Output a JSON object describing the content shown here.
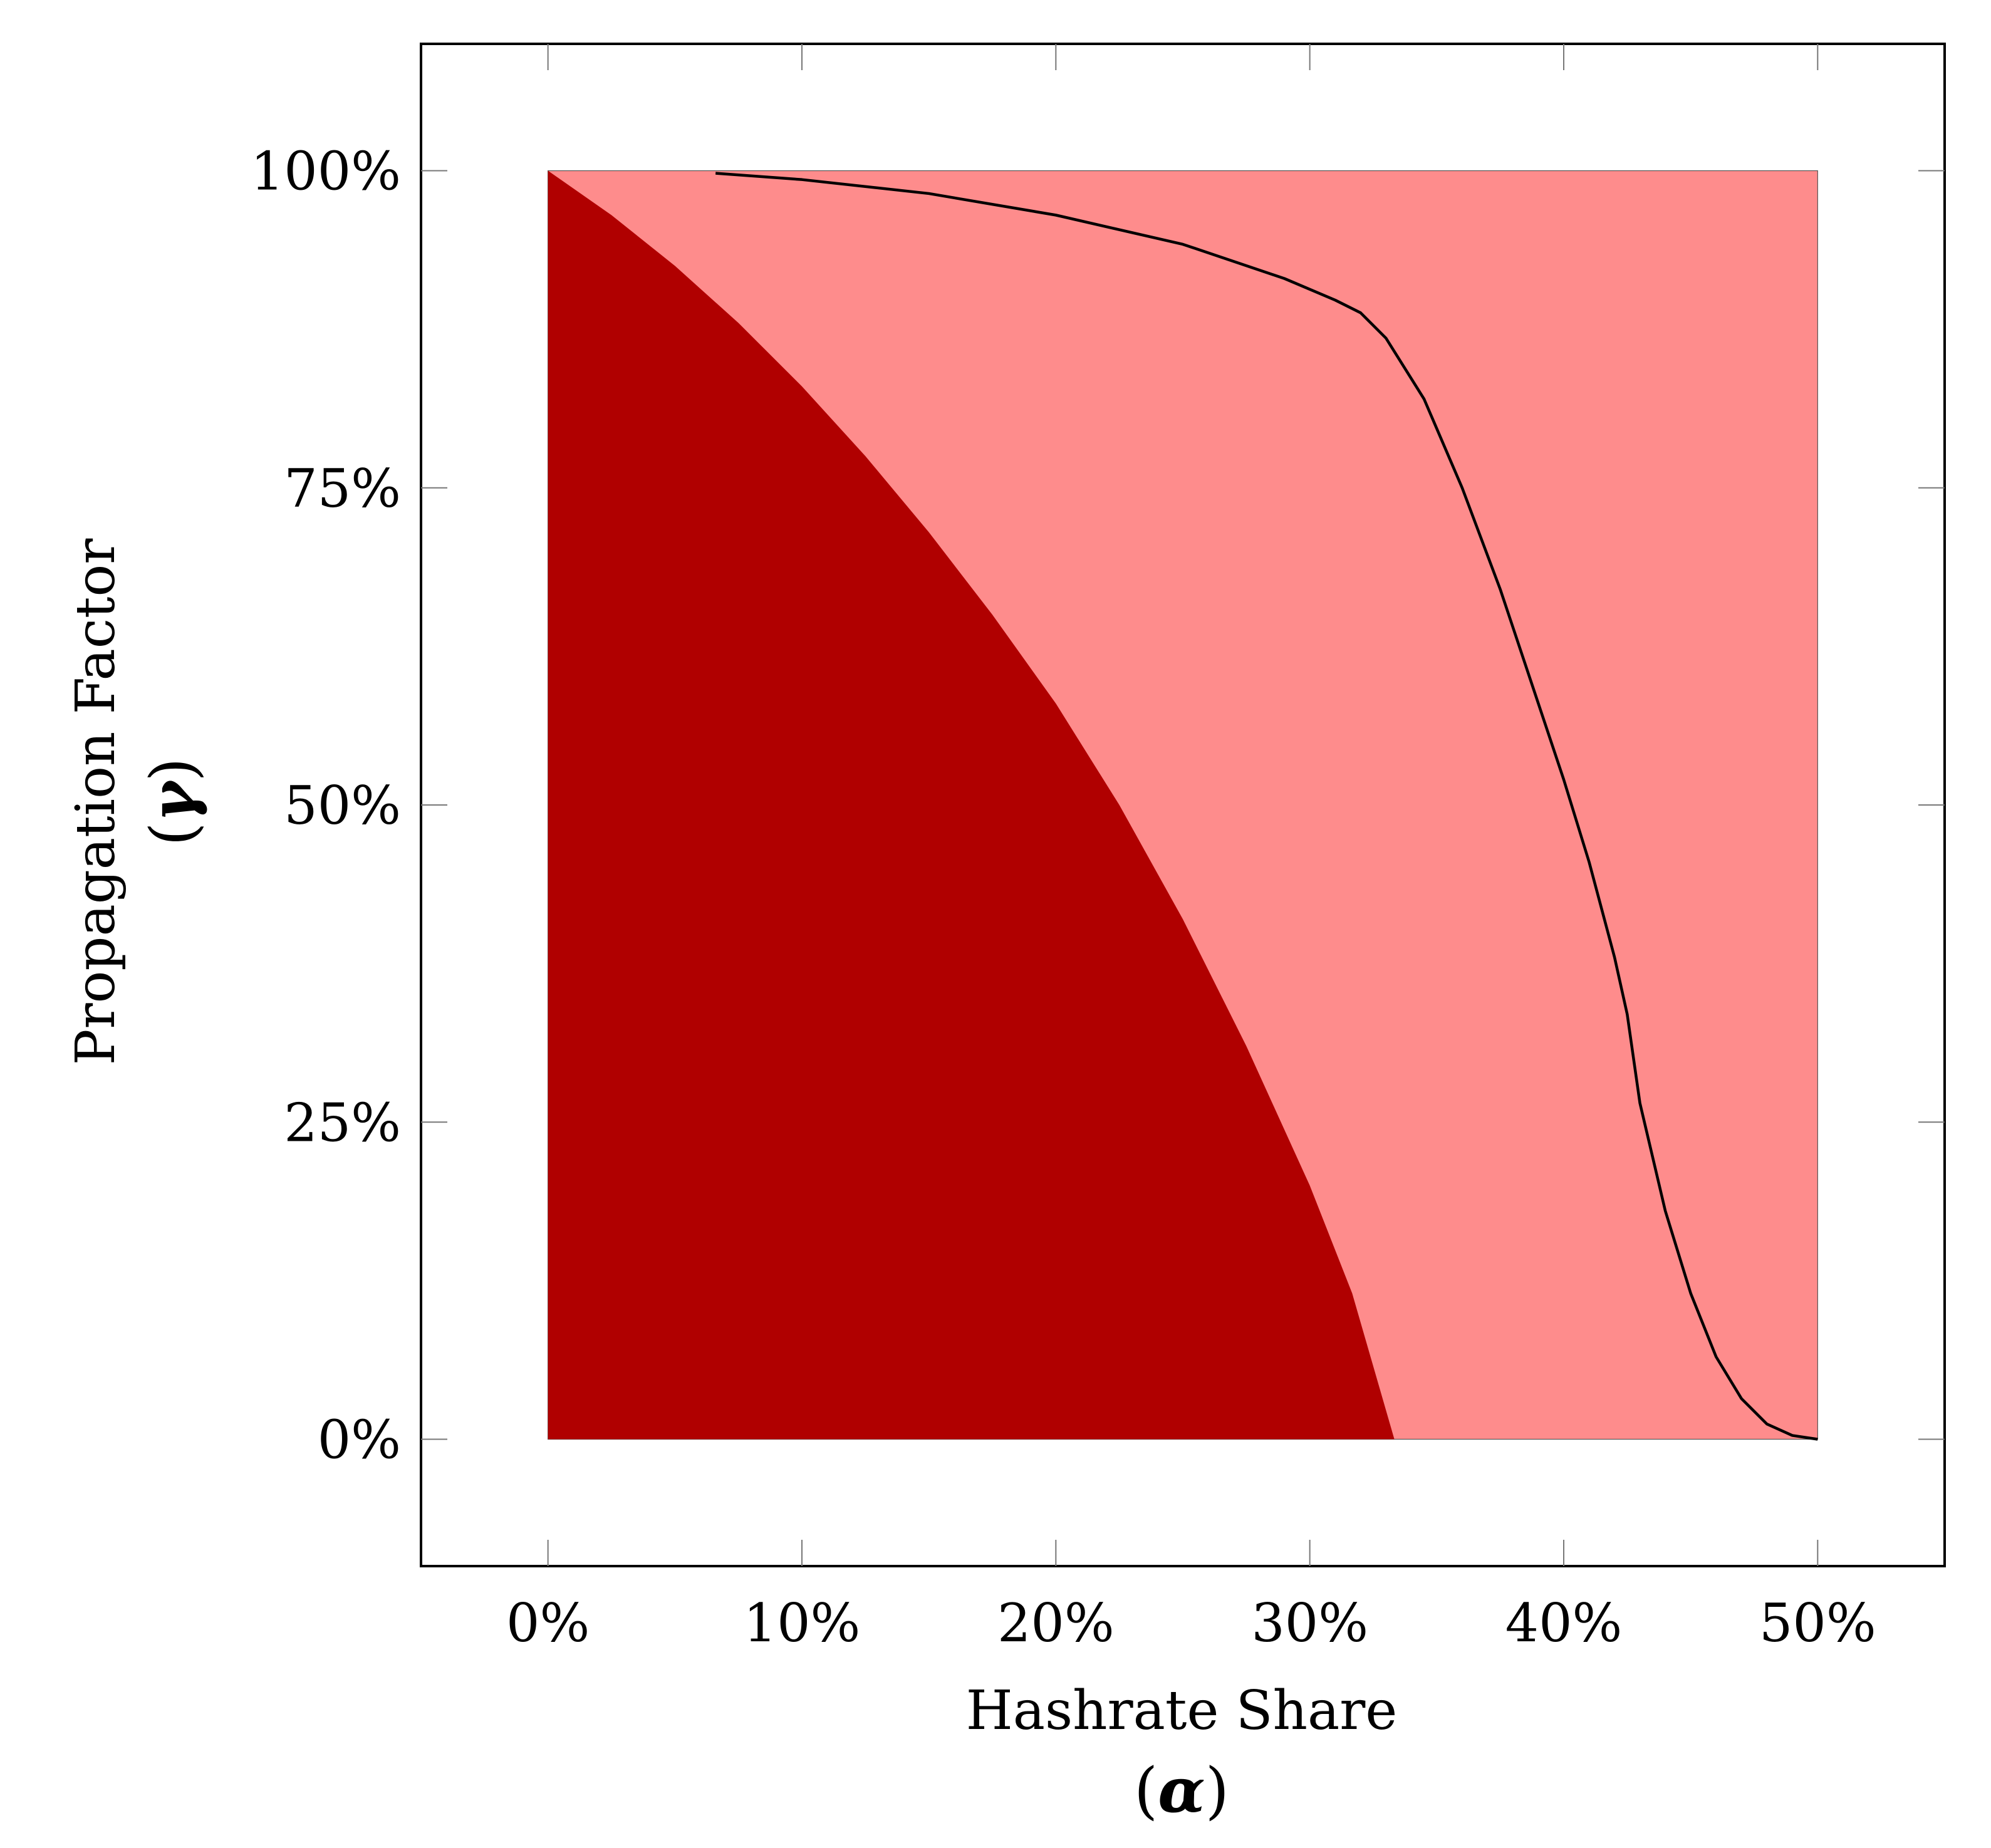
{
  "chart_data": {
    "type": "area",
    "xlabel": "Hashrate Share",
    "xlabel_symbol": "α",
    "ylabel": "Propagation Factor",
    "ylabel_symbol": "γ",
    "xlim": [
      -0.05,
      0.55
    ],
    "ylim": [
      -0.1,
      1.1
    ],
    "x_ticks": [
      {
        "value": 0.0,
        "label": "0%"
      },
      {
        "value": 0.1,
        "label": "10%"
      },
      {
        "value": 0.2,
        "label": "20%"
      },
      {
        "value": 0.3,
        "label": "30%"
      },
      {
        "value": 0.4,
        "label": "40%"
      },
      {
        "value": 0.5,
        "label": "50%"
      }
    ],
    "y_ticks": [
      {
        "value": 0.0,
        "label": "0%"
      },
      {
        "value": 0.25,
        "label": "25%"
      },
      {
        "value": 0.5,
        "label": "50%"
      },
      {
        "value": 0.75,
        "label": "75%"
      },
      {
        "value": 1.0,
        "label": "100%"
      }
    ],
    "grid": false,
    "legend": "none",
    "colors": {
      "dark_region": "#b00000",
      "light_region": "#fe8c8c",
      "curve": "#000000",
      "frame": "#000000"
    },
    "light_region_bounds": {
      "x": [
        0.0,
        0.5
      ],
      "y": [
        0.0,
        1.0
      ]
    },
    "dark_region_boundary": [
      [
        0.0,
        1.0
      ],
      [
        0.025,
        0.965
      ],
      [
        0.05,
        0.925
      ],
      [
        0.075,
        0.88
      ],
      [
        0.1,
        0.83
      ],
      [
        0.125,
        0.775
      ],
      [
        0.15,
        0.715
      ],
      [
        0.175,
        0.65
      ],
      [
        0.2,
        0.58
      ],
      [
        0.225,
        0.5
      ],
      [
        0.25,
        0.41
      ],
      [
        0.275,
        0.31
      ],
      [
        0.3,
        0.2
      ],
      [
        0.3167,
        0.115
      ],
      [
        0.3333,
        0.0
      ]
    ],
    "curve_points": [
      [
        0.066,
        0.998
      ],
      [
        0.1,
        0.993
      ],
      [
        0.15,
        0.982
      ],
      [
        0.2,
        0.965
      ],
      [
        0.25,
        0.942
      ],
      [
        0.29,
        0.915
      ],
      [
        0.31,
        0.898
      ],
      [
        0.32,
        0.888
      ],
      [
        0.33,
        0.868
      ],
      [
        0.345,
        0.82
      ],
      [
        0.36,
        0.75
      ],
      [
        0.375,
        0.67
      ],
      [
        0.39,
        0.58
      ],
      [
        0.4,
        0.52
      ],
      [
        0.41,
        0.455
      ],
      [
        0.42,
        0.38
      ],
      [
        0.425,
        0.335
      ],
      [
        0.43,
        0.265
      ],
      [
        0.44,
        0.18
      ],
      [
        0.45,
        0.115
      ],
      [
        0.46,
        0.065
      ],
      [
        0.47,
        0.032
      ],
      [
        0.48,
        0.012
      ],
      [
        0.49,
        0.003
      ],
      [
        0.5,
        0.0
      ]
    ]
  }
}
